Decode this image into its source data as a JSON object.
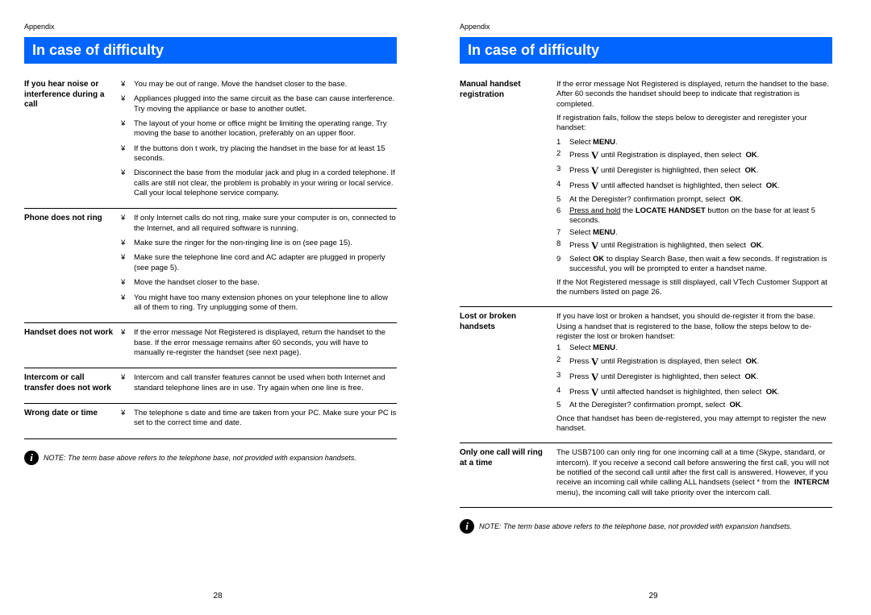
{
  "appendix": "Appendix",
  "title": "In case of difficulty",
  "note": "NOTE: The term  base  above refers to the telephone base, not  provided with expansion handsets.",
  "noteItalicPrefix": "NOTE:",
  "left": {
    "pageNum": "28",
    "sections": [
      {
        "label": "If you hear noise or interference during a call",
        "bullets": [
          "You may be out of range. Move the handset closer to the base.",
          "Appliances plugged into the same circuit as the base can cause interference. Try moving the appliance or base to another outlet.",
          "The layout of your home or office might be limiting the operating range. Try moving the base to another location, preferably on an upper floor.",
          "If the buttons don t work, try placing the handset in the base for at least 15 seconds.",
          "Disconnect the base from the modular jack and plug in a corded telephone. If calls are still not clear, the problem is probably in your wiring or local service. Call your local telephone service company."
        ]
      },
      {
        "label": "Phone does not ring",
        "bullets": [
          "If only Internet calls do not ring, make sure your computer is on, connected to the Internet, and all required software is running.",
          "Make sure the ringer for the non-ringing line is on (see page 15).",
          "Make sure the telephone line cord and AC adapter are plugged in properly (see page 5).",
          "Move the handset closer to the base.",
          "You might have too many extension phones on your telephone line to allow all of them to ring. Try unplugging some of them."
        ]
      },
      {
        "label": "Handset does not work",
        "bullets": [
          "If the error message  Not Registered  is displayed, return the handset to the base. If the error message remains after 60 seconds, you will have to manually re-register the handset (see next page)."
        ]
      },
      {
        "label": "Intercom or call transfer does not work",
        "bullets": [
          "Intercom and call transfer features cannot be used when both Internet and standard telephone lines are in use. Try again when one line is free."
        ]
      },
      {
        "label": "Wrong date or time",
        "bullets": [
          "The telephone s date and time are taken from your PC. Make sure your PC is set to the correct time and date."
        ]
      }
    ]
  },
  "right": {
    "pageNum": "29",
    "manual": {
      "label": "Manual handset registration",
      "intro1": "If the error message  Not Registered  is displayed, return the handset to the base. After 60 seconds the handset should beep to indicate that registration is completed.",
      "intro2": "If registration fails, follow the steps below to deregister and reregister your handset:",
      "steps": [
        {
          "n": "1",
          "html": "Select <b>MENU</b>."
        },
        {
          "n": "2",
          "html": "Press <span class='v-sym'>V</span> until  Registration  is displayed, then select&nbsp;&nbsp;<b>OK</b>."
        },
        {
          "n": "3",
          "html": "Press <span class='v-sym'>V</span> until  Deregister  is highlighted, then select&nbsp;&nbsp;<b>OK</b>."
        },
        {
          "n": "4",
          "html": "Press <span class='v-sym'>V</span> until affected handset is highlighted, then select&nbsp;&nbsp;<b>OK</b>."
        },
        {
          "n": "5",
          "html": "At the  Deregister?  confirmation prompt, select&nbsp;&nbsp;<b>OK</b>."
        },
        {
          "n": "6",
          "html": "<span class='ul'>Press and hold</span> the <b>LOCATE HANDSET</b> button on the base for at least 5 seconds."
        },
        {
          "n": "7",
          "html": "Select <b>MENU</b>."
        },
        {
          "n": "8",
          "html": "Press <span class='v-sym'>V</span> until  Registration  is highlighted, then select&nbsp;&nbsp;<b>OK</b>."
        },
        {
          "n": "9",
          "html": "Select <b>OK</b> to display  Search Base,  then wait a few seconds. If registration is successful, you will be prompted to enter a handset name."
        }
      ],
      "outro": "If the  Not Registered  message is still displayed, call VTech Customer Support at the numbers listed on page 26."
    },
    "lost": {
      "label": "Lost or broken handsets",
      "intro": "If you have lost or broken a handset, you should de-register it from the base.  Using a handset that is registered to the base, follow the steps below to de-register the lost or broken handset:",
      "steps": [
        {
          "n": "1",
          "html": "Select <b>MENU</b>."
        },
        {
          "n": "2",
          "html": "Press <span class='v-sym'>V</span> until  Registration  is displayed, then select&nbsp;&nbsp;<b>OK</b>."
        },
        {
          "n": "3",
          "html": "Press <span class='v-sym'>V</span> until  Deregister  is highlighted, then select&nbsp;&nbsp;<b>OK</b>."
        },
        {
          "n": "4",
          "html": "Press <span class='v-sym'>V</span> until affected handset is highlighted, then select&nbsp;&nbsp;<b>OK</b>."
        },
        {
          "n": "5",
          "html": "At the  Deregister?  confirmation prompt, select&nbsp;&nbsp;<b>OK</b>."
        }
      ],
      "outro": "Once that handset has been de-registered, you may attempt to register the new handset."
    },
    "onecall": {
      "label": "Only one call will ring at a time",
      "html": "The USB7100 can only ring for one incoming call at a time  (Skype, standard, or intercom).  If you receive a second call before answering the first call, you will not be notified of the second call until after the first call is answered. However, if you receive an incoming call while calling ALL handsets (select * from the&nbsp;&nbsp;<b>INTERCM</b> menu), the incoming call will take priority over the intercom call."
    }
  }
}
